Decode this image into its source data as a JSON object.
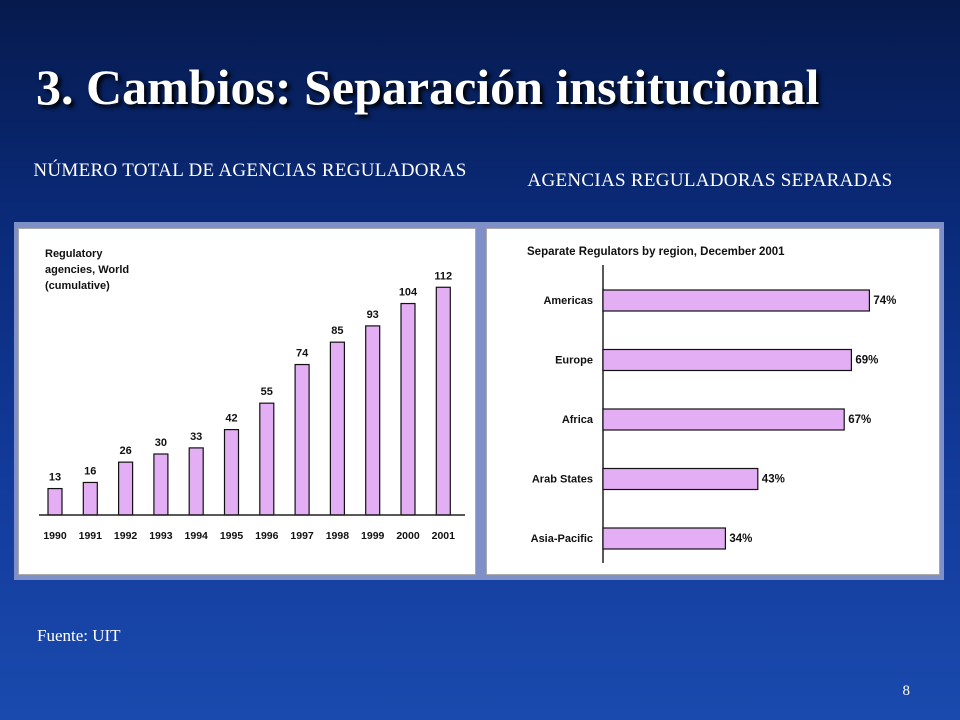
{
  "slide": {
    "title": "3. Cambios: Separación institucional",
    "subhead_left": "NÚMERO TOTAL DE AGENCIAS REGULADORAS",
    "subhead_right": "AGENCIAS REGULADORAS SEPARADAS",
    "source": "Fuente: UIT",
    "page_number": "8"
  },
  "colors": {
    "bar_fill": "#e4aef4",
    "bar_stroke": "#111111",
    "background": "#0a2a78"
  },
  "chart_data": [
    {
      "type": "bar",
      "title": "Regulatory agencies, World (cumulative)",
      "title_lines": [
        "Regulatory",
        "agencies, World",
        "(cumulative)"
      ],
      "categories": [
        "1990",
        "1991",
        "1992",
        "1993",
        "1994",
        "1995",
        "1996",
        "1997",
        "1998",
        "1999",
        "2000",
        "2001"
      ],
      "values": [
        13,
        16,
        26,
        30,
        33,
        42,
        55,
        74,
        85,
        93,
        104,
        112
      ],
      "ylim": [
        0,
        120
      ],
      "grid": false,
      "legend": "none"
    },
    {
      "type": "bar",
      "orientation": "horizontal",
      "title": "Separate Regulators by region, December 2001",
      "categories": [
        "Americas",
        "Europe",
        "Africa",
        "Arab States",
        "Asia-Pacific"
      ],
      "values": [
        74,
        69,
        67,
        43,
        34
      ],
      "value_labels": [
        "74%",
        "69%",
        "67%",
        "43%",
        "34%"
      ],
      "xlim": [
        0,
        100
      ],
      "grid": false,
      "legend": "none"
    }
  ]
}
